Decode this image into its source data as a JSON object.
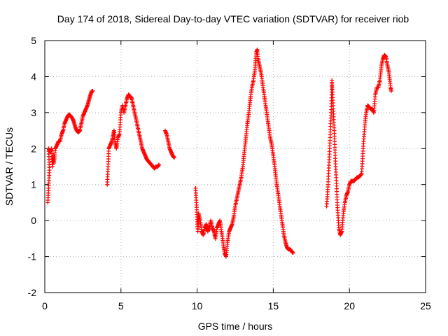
{
  "chart_data": {
    "type": "scatter",
    "title": "Day 174 of 2018, Sidereal Day-to-day VTEC variation (SDTVAR) for receiver riob",
    "xlabel": "GPS time / hours",
    "ylabel": "SDTVAR / TECUs",
    "xlim": [
      0,
      25
    ],
    "ylim": [
      -2,
      5
    ],
    "xticks": [
      "0",
      "5",
      "10",
      "15",
      "20",
      "25"
    ],
    "yticks": [
      "-2",
      "-1",
      "0",
      "1",
      "2",
      "3",
      "4",
      "5"
    ],
    "grid": true,
    "marker": "plus",
    "colors": {
      "series": "#ff0000",
      "grid": "#b0b0b0",
      "axis": "#000000"
    },
    "series": [
      {
        "name": "SDTVAR",
        "segments": [
          [
            [
              0.2,
              0.5
            ],
            [
              0.25,
              0.9
            ],
            [
              0.3,
              1.4
            ],
            [
              0.25,
              2.0
            ],
            [
              0.35,
              1.9
            ],
            [
              0.45,
              2.0
            ],
            [
              0.5,
              1.5
            ],
            [
              0.55,
              1.8
            ],
            [
              0.6,
              1.6
            ],
            [
              0.7,
              2.0
            ],
            [
              0.8,
              2.1
            ],
            [
              0.9,
              2.2
            ],
            [
              1.0,
              2.2
            ],
            [
              1.1,
              2.4
            ],
            [
              1.2,
              2.5
            ],
            [
              1.3,
              2.7
            ],
            [
              1.4,
              2.8
            ],
            [
              1.5,
              2.9
            ],
            [
              1.6,
              2.95
            ],
            [
              1.7,
              2.9
            ],
            [
              1.8,
              2.85
            ],
            [
              1.9,
              2.75
            ],
            [
              2.0,
              2.6
            ],
            [
              2.1,
              2.5
            ],
            [
              2.2,
              2.45
            ],
            [
              2.3,
              2.5
            ],
            [
              2.4,
              2.7
            ],
            [
              2.5,
              2.9
            ],
            [
              2.6,
              3.0
            ],
            [
              2.7,
              3.1
            ],
            [
              2.8,
              3.2
            ],
            [
              2.9,
              3.35
            ],
            [
              3.0,
              3.5
            ],
            [
              3.1,
              3.6
            ],
            [
              3.15,
              3.6
            ]
          ],
          [
            [
              4.1,
              1.0
            ],
            [
              4.15,
              1.5
            ],
            [
              4.2,
              2.0
            ],
            [
              4.3,
              2.1
            ],
            [
              4.4,
              2.2
            ],
            [
              4.5,
              2.4
            ],
            [
              4.55,
              2.5
            ],
            [
              4.6,
              2.2
            ],
            [
              4.7,
              2.0
            ],
            [
              4.8,
              2.3
            ],
            [
              4.9,
              2.4
            ],
            [
              5.0,
              3.0
            ],
            [
              5.1,
              3.2
            ],
            [
              5.2,
              3.0
            ],
            [
              5.3,
              3.2
            ],
            [
              5.4,
              3.4
            ],
            [
              5.5,
              3.5
            ],
            [
              5.6,
              3.45
            ],
            [
              5.7,
              3.4
            ],
            [
              5.8,
              3.2
            ],
            [
              5.9,
              3.0
            ],
            [
              6.0,
              2.8
            ],
            [
              6.1,
              2.6
            ],
            [
              6.2,
              2.4
            ],
            [
              6.3,
              2.2
            ],
            [
              6.4,
              2.0
            ],
            [
              6.5,
              1.9
            ],
            [
              6.6,
              1.8
            ],
            [
              6.7,
              1.7
            ],
            [
              6.8,
              1.65
            ],
            [
              6.9,
              1.6
            ],
            [
              7.0,
              1.55
            ],
            [
              7.1,
              1.5
            ],
            [
              7.2,
              1.45
            ],
            [
              7.3,
              1.5
            ],
            [
              7.4,
              1.5
            ],
            [
              7.5,
              1.55
            ]
          ],
          [
            [
              7.9,
              2.5
            ],
            [
              8.0,
              2.4
            ],
            [
              8.1,
              2.2
            ],
            [
              8.2,
              2.0
            ],
            [
              8.3,
              1.9
            ],
            [
              8.4,
              1.8
            ],
            [
              8.5,
              1.75
            ]
          ],
          [
            [
              9.9,
              0.9
            ],
            [
              9.95,
              0.5
            ],
            [
              10.0,
              0.1
            ],
            [
              10.05,
              -0.3
            ],
            [
              10.1,
              0.2
            ],
            [
              10.2,
              0.0
            ],
            [
              10.3,
              -0.3
            ],
            [
              10.4,
              -0.4
            ],
            [
              10.5,
              -0.2
            ],
            [
              10.6,
              -0.1
            ],
            [
              10.7,
              -0.3
            ],
            [
              10.8,
              -0.2
            ],
            [
              10.9,
              0.0
            ],
            [
              11.0,
              -0.2
            ],
            [
              11.1,
              -0.3
            ],
            [
              11.2,
              -0.5
            ],
            [
              11.3,
              -0.2
            ],
            [
              11.4,
              -0.1
            ],
            [
              11.5,
              0.0
            ],
            [
              11.6,
              -0.3
            ],
            [
              11.7,
              -0.6
            ],
            [
              11.8,
              -0.9
            ],
            [
              11.9,
              -1.0
            ],
            [
              12.0,
              -0.6
            ],
            [
              12.1,
              -0.3
            ],
            [
              12.2,
              -0.2
            ],
            [
              12.3,
              -0.1
            ],
            [
              12.4,
              0.1
            ],
            [
              12.5,
              0.4
            ],
            [
              12.6,
              0.6
            ],
            [
              12.7,
              0.8
            ],
            [
              12.8,
              1.0
            ],
            [
              12.9,
              1.2
            ],
            [
              13.0,
              1.5
            ],
            [
              13.1,
              1.9
            ],
            [
              13.2,
              2.3
            ],
            [
              13.3,
              2.7
            ],
            [
              13.4,
              3.0
            ],
            [
              13.5,
              3.4
            ],
            [
              13.6,
              3.7
            ],
            [
              13.7,
              3.9
            ],
            [
              13.8,
              4.2
            ],
            [
              13.85,
              4.5
            ],
            [
              13.9,
              4.7
            ],
            [
              13.95,
              4.75
            ],
            [
              14.0,
              4.5
            ],
            [
              14.1,
              4.3
            ],
            [
              14.2,
              4.1
            ],
            [
              14.3,
              3.8
            ],
            [
              14.4,
              3.5
            ],
            [
              14.5,
              3.2
            ],
            [
              14.6,
              2.9
            ],
            [
              14.7,
              2.6
            ],
            [
              14.8,
              2.3
            ],
            [
              14.9,
              2.1
            ],
            [
              15.0,
              1.8
            ],
            [
              15.1,
              1.5
            ],
            [
              15.2,
              1.1
            ],
            [
              15.3,
              0.8
            ],
            [
              15.4,
              0.5
            ],
            [
              15.5,
              0.2
            ],
            [
              15.6,
              -0.1
            ],
            [
              15.7,
              -0.4
            ],
            [
              15.8,
              -0.6
            ],
            [
              15.9,
              -0.75
            ],
            [
              16.0,
              -0.8
            ],
            [
              16.1,
              -0.8
            ],
            [
              16.2,
              -0.85
            ],
            [
              16.3,
              -0.9
            ]
          ],
          [
            [
              18.5,
              0.4
            ],
            [
              18.6,
              1.0
            ],
            [
              18.7,
              2.0
            ],
            [
              18.8,
              3.0
            ],
            [
              18.85,
              3.9
            ],
            [
              18.9,
              3.5
            ],
            [
              19.0,
              2.5
            ],
            [
              19.1,
              1.5
            ],
            [
              19.2,
              0.5
            ],
            [
              19.3,
              -0.2
            ],
            [
              19.4,
              -0.4
            ],
            [
              19.5,
              -0.3
            ],
            [
              19.6,
              0.2
            ],
            [
              19.7,
              0.5
            ],
            [
              19.8,
              0.7
            ],
            [
              19.9,
              0.8
            ],
            [
              20.0,
              1.0
            ],
            [
              20.1,
              1.1
            ],
            [
              20.2,
              1.1
            ],
            [
              20.3,
              1.1
            ],
            [
              20.4,
              1.15
            ],
            [
              20.5,
              1.2
            ],
            [
              20.6,
              1.2
            ],
            [
              20.7,
              1.25
            ],
            [
              20.8,
              1.3
            ],
            [
              20.9,
              2.0
            ],
            [
              21.0,
              2.6
            ],
            [
              21.1,
              3.0
            ],
            [
              21.2,
              3.2
            ],
            [
              21.3,
              3.15
            ],
            [
              21.4,
              3.1
            ],
            [
              21.5,
              3.1
            ],
            [
              21.6,
              3.0
            ],
            [
              21.7,
              3.5
            ],
            [
              21.8,
              3.7
            ],
            [
              21.9,
              3.7
            ],
            [
              22.0,
              3.9
            ],
            [
              22.1,
              4.3
            ],
            [
              22.2,
              4.5
            ],
            [
              22.3,
              4.6
            ],
            [
              22.4,
              4.55
            ],
            [
              22.5,
              4.3
            ],
            [
              22.6,
              4.1
            ],
            [
              22.7,
              3.7
            ],
            [
              22.75,
              3.6
            ]
          ]
        ]
      }
    ]
  }
}
